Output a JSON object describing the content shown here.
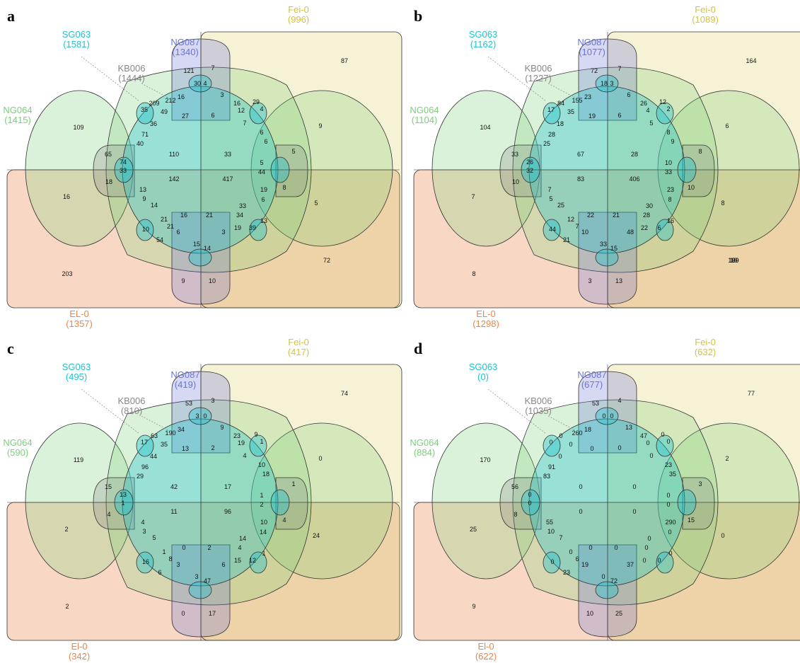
{
  "colors": {
    "NG064": "#7ccf7a",
    "SG063": "#1fc4cf",
    "KB006": "#888888",
    "NG087": "#6a74d8",
    "Fei-0": "#d2c243",
    "EL-0": "#e8864c"
  },
  "panels": [
    {
      "letter": "a",
      "labels": {
        "fei": [
          "Fei-0",
          "(996)"
        ],
        "ng087": [
          "NG087",
          "(1340)"
        ],
        "sg063": [
          "SG063",
          "(1581)"
        ],
        "kb006": [
          "KB006",
          "(1444)"
        ],
        "ng064": [
          "NG064",
          "(1415)"
        ],
        "el": [
          "EL-0",
          "(1357)"
        ]
      },
      "counts": [
        "121",
        "7",
        "87",
        "30",
        "4",
        "16",
        "212",
        "209",
        "49",
        "3",
        "16",
        "29",
        "35",
        "27",
        "6",
        "12",
        "4",
        "109",
        "36",
        "7",
        "9",
        "71",
        "6",
        "6",
        "40",
        "65",
        "110",
        "33",
        "5",
        "74",
        "5",
        "33",
        "44",
        "142",
        "417",
        "18",
        "13",
        "19",
        "8",
        "9",
        "16",
        "14",
        "16",
        "21",
        "33",
        "6",
        "5",
        "34",
        "21",
        "10",
        "54",
        "21",
        "6",
        "3",
        "19",
        "39",
        "13",
        "15",
        "14",
        "203",
        "9",
        "10",
        "72"
      ]
    },
    {
      "letter": "b",
      "labels": {
        "fei": [
          "Fei-0",
          "(1089)"
        ],
        "ng087": [
          "NG087",
          "(1077)"
        ],
        "sg063": [
          "SG063",
          "(1162)"
        ],
        "kb006": [
          "KB006",
          "(1227)"
        ],
        "ng064": [
          "NG064",
          "(1104)"
        ],
        "el": [
          "EL-0",
          "(1298)"
        ]
      },
      "counts": [
        "72",
        "7",
        "164",
        "18",
        "3",
        "23",
        "155",
        "84",
        "35",
        "6",
        "26",
        "12",
        "17",
        "19",
        "6",
        "4",
        "2",
        "104",
        "18",
        "5",
        "6",
        "28",
        "8",
        "9",
        "25",
        "33",
        "67",
        "28",
        "8",
        "26",
        "10",
        "32",
        "33",
        "83",
        "406",
        "10",
        "7",
        "23",
        "10",
        "5",
        "7",
        "25",
        "22",
        "21",
        "30",
        "8",
        "8",
        "28",
        "12",
        "44",
        "21",
        "7",
        "10",
        "48",
        "22",
        "6",
        "16",
        "33",
        "15",
        "8",
        "3",
        "13",
        "190",
        "10",
        "9",
        "109"
      ]
    },
    {
      "letter": "c",
      "labels": {
        "fei": [
          "Fei-0",
          "(417)"
        ],
        "ng087": [
          "NG087",
          "(419)"
        ],
        "sg063": [
          "SG063",
          "(495)"
        ],
        "kb006": [
          "KB006",
          "(810)"
        ],
        "ng064": [
          "NG064",
          "(590)"
        ],
        "el": [
          "El-0",
          "(342)"
        ]
      },
      "counts": [
        "53",
        "3",
        "74",
        "3",
        "0",
        "34",
        "190",
        "63",
        "35",
        "9",
        "23",
        "9",
        "17",
        "13",
        "2",
        "19",
        "1",
        "119",
        "44",
        "4",
        "0",
        "96",
        "10",
        "18",
        "29",
        "15",
        "42",
        "17",
        "1",
        "13",
        "1",
        "1",
        "2",
        "11",
        "96",
        "4",
        "4",
        "10",
        "4",
        "3",
        "2",
        "5",
        "0",
        "2",
        "14",
        "14",
        "24",
        "4",
        "1",
        "16",
        "6",
        "8",
        "3",
        "6",
        "15",
        "12",
        "1",
        "3",
        "47",
        "2",
        "0",
        "17"
      ]
    },
    {
      "letter": "d",
      "labels": {
        "fei": [
          "Fei-0",
          "(632)"
        ],
        "ng087": [
          "NG087",
          "(677)"
        ],
        "sg063": [
          "SG063",
          "(0)"
        ],
        "kb006": [
          "KB006",
          "(1035)"
        ],
        "ng064": [
          "NG064",
          "(884)"
        ],
        "el": [
          "El-0",
          "(622)"
        ]
      },
      "counts": [
        "53",
        "4",
        "77",
        "0",
        "0",
        "18",
        "260",
        "0",
        "0",
        "13",
        "47",
        "0",
        "0",
        "0",
        "0",
        "0",
        "0",
        "170",
        "0",
        "0",
        "2",
        "91",
        "23",
        "35",
        "83",
        "56",
        "0",
        "0",
        "3",
        "0",
        "0",
        "0",
        "0",
        "0",
        "0",
        "8",
        "55",
        "290",
        "15",
        "10",
        "25",
        "7",
        "0",
        "0",
        "0",
        "0",
        "0",
        "0",
        "0",
        "0",
        "23",
        "6",
        "19",
        "37",
        "0",
        "0",
        "0",
        "0",
        "72",
        "9",
        "10",
        "25"
      ]
    }
  ]
}
